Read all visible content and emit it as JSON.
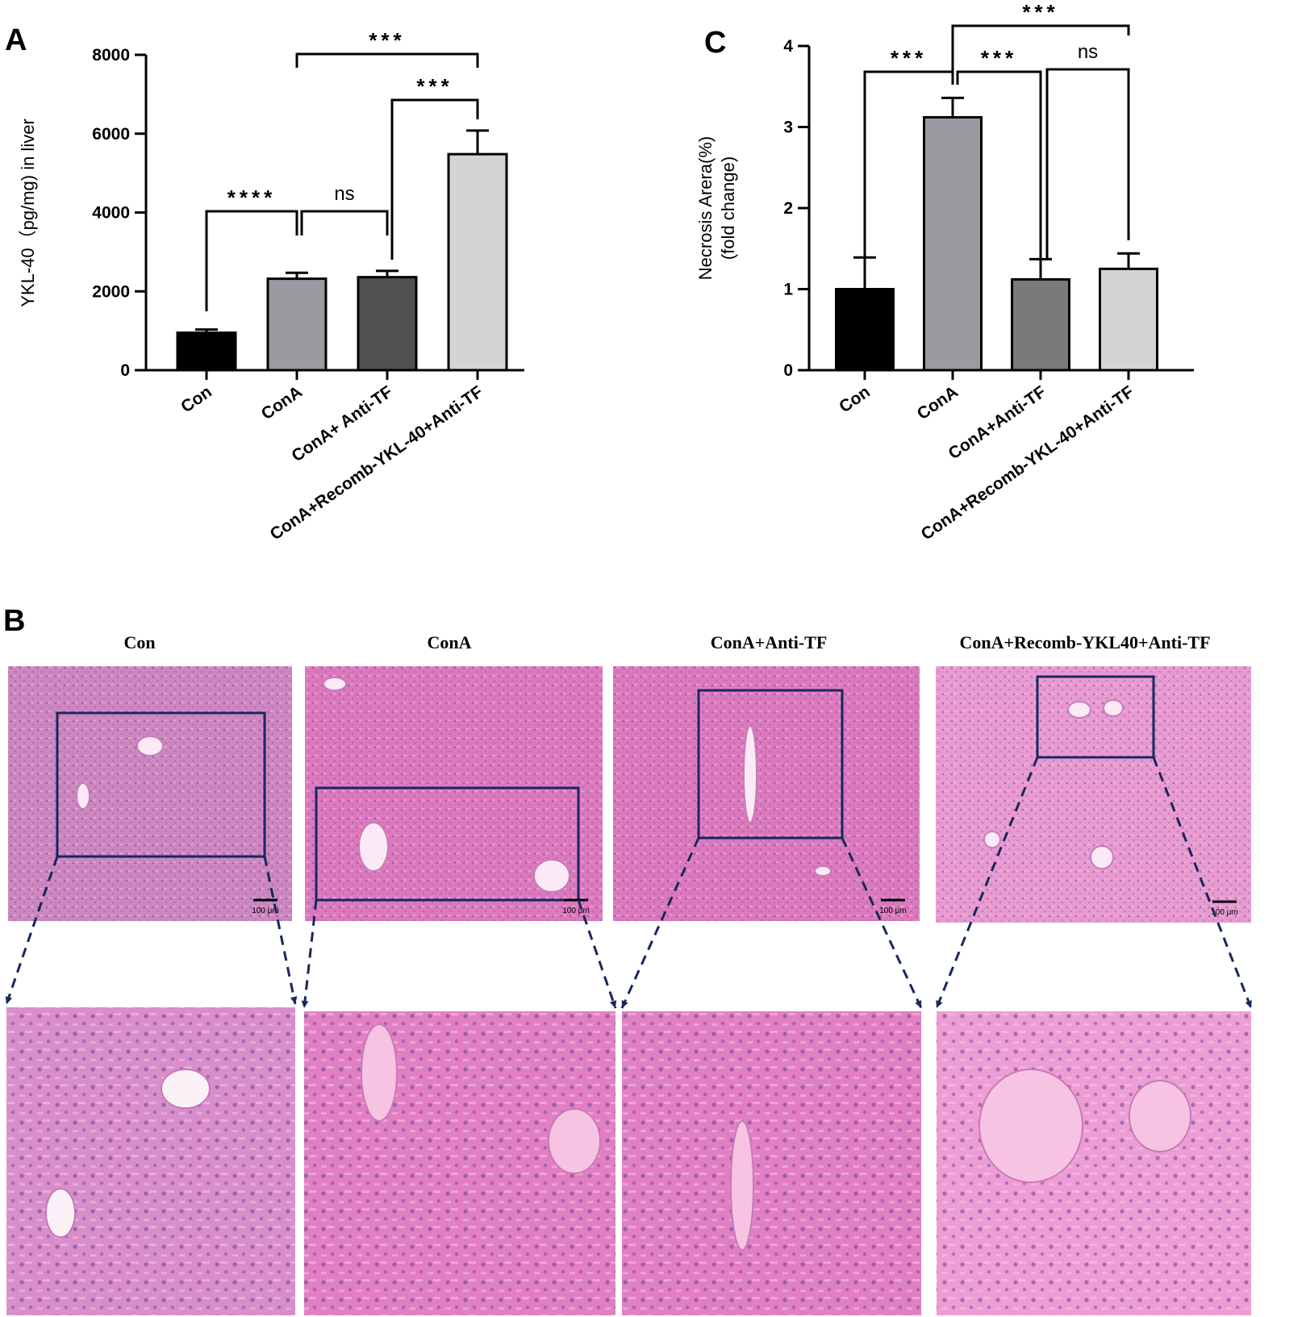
{
  "panels": {
    "a_letter": "A",
    "b_letter": "B",
    "c_letter": "C"
  },
  "chart_data": [
    {
      "panel": "A",
      "type": "bar",
      "categories": [
        "Con",
        "ConA",
        "ConA+ Anti-TF",
        "ConA+Recomb-YKL-40+Anti-TF"
      ],
      "values": [
        950,
        2320,
        2360,
        5480
      ],
      "errors": [
        80,
        150,
        160,
        600
      ],
      "bar_colors": [
        "#000000",
        "#9a9aa0",
        "#505050",
        "#d4d4d4"
      ],
      "ylabel": "YKL-40（pg/mg) in liver",
      "ylim": [
        0,
        8000
      ],
      "yticks": [
        0,
        2000,
        4000,
        6000,
        8000
      ],
      "significance": [
        {
          "from": 0,
          "to": 1,
          "label": "****"
        },
        {
          "from": 1,
          "to": 2,
          "label": "ns"
        },
        {
          "from": 2,
          "to": 3,
          "label": "***"
        },
        {
          "from": 1,
          "to": 3,
          "label": "***"
        }
      ]
    },
    {
      "panel": "C",
      "type": "bar",
      "categories": [
        "Con",
        "ConA",
        "ConA+Anti-TF",
        "ConA+Recomb-YKL-40+Anti-TF"
      ],
      "values": [
        1.0,
        3.12,
        1.12,
        1.25
      ],
      "errors": [
        0.39,
        0.24,
        0.25,
        0.19
      ],
      "bar_colors": [
        "#000000",
        "#9a9aa0",
        "#7a7a7a",
        "#d4d4d4"
      ],
      "ylabel": "Necrosis Arera(%)",
      "ylabel2": "(fold change)",
      "ylim": [
        0,
        4
      ],
      "yticks": [
        0,
        1,
        2,
        3,
        4
      ],
      "significance": [
        {
          "from": 0,
          "to": 1,
          "label": "***"
        },
        {
          "from": 1,
          "to": 2,
          "label": "***"
        },
        {
          "from": 2,
          "to": 3,
          "label": "ns"
        },
        {
          "from": 1,
          "to": 3,
          "label": "***"
        }
      ]
    }
  ],
  "histology": {
    "titles": [
      "Con",
      "ConA",
      "ConA+Anti-TF",
      "ConA+Recomb-YKL40+Anti-TF"
    ],
    "scale_label": "100 μm"
  }
}
